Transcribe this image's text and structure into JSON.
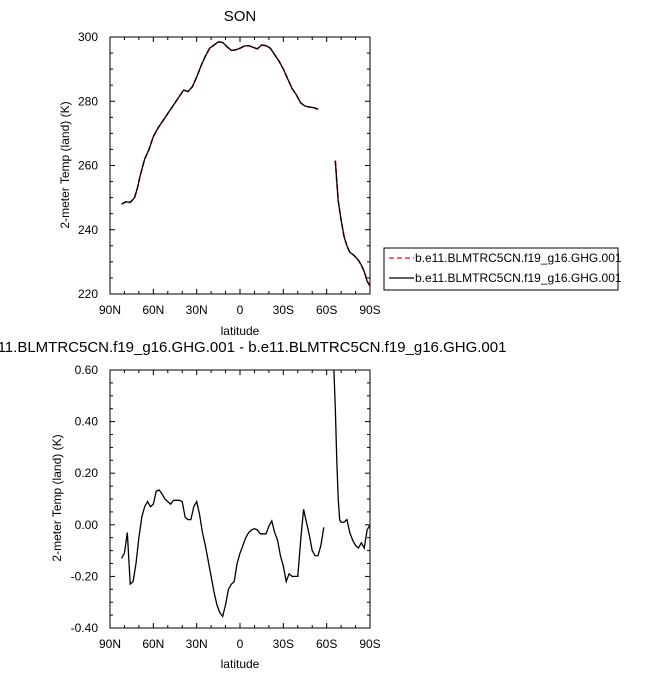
{
  "chart_data": [
    {
      "type": "line",
      "title": "SON",
      "xlabel": "latitude",
      "ylabel": "2-meter Temp (land) (K)",
      "xlim": [
        90,
        -90
      ],
      "ylim": [
        220,
        300
      ],
      "xticks": [
        90,
        60,
        30,
        0,
        -30,
        -60,
        -90
      ],
      "xtick_labels": [
        "90N",
        "60N",
        "30N",
        "0",
        "30S",
        "60S",
        "90S"
      ],
      "yticks": [
        220,
        240,
        260,
        280,
        300
      ],
      "ytick_labels": [
        "220",
        "240",
        "260",
        "280",
        "300"
      ],
      "legend": {
        "placement": "right",
        "entries": [
          "b.e11.BLMTRC5CN.f19_g16.GHG.001",
          "b.e11.BLMTRC5CN.f19_g16.GHG.001"
        ]
      },
      "series": [
        {
          "name": "b.e11.BLMTRC5CN.f19_g16.GHG.001",
          "color": "#ff0000",
          "style": "dashed",
          "segments": [
            [
              [
                82,
                248
              ],
              [
                79,
                248.7
              ],
              [
                76,
                248.5
              ],
              [
                73,
                250
              ],
              [
                71,
                253
              ],
              [
                69,
                257
              ],
              [
                66,
                262
              ],
              [
                63,
                265
              ],
              [
                60,
                269
              ],
              [
                57,
                271.5
              ],
              [
                54,
                273.5
              ],
              [
                51,
                275.5
              ],
              [
                48,
                277.5
              ],
              [
                45,
                279.5
              ],
              [
                42,
                281.5
              ],
              [
                39,
                283.5
              ],
              [
                36,
                283
              ],
              [
                33,
                284.5
              ],
              [
                30,
                287.5
              ],
              [
                27,
                291
              ],
              [
                24,
                294
              ],
              [
                21,
                296.5
              ],
              [
                18,
                297.5
              ],
              [
                15,
                298.5
              ],
              [
                12,
                298.3
              ],
              [
                9,
                297
              ],
              [
                6,
                295.8
              ],
              [
                3,
                296
              ],
              [
                0,
                296.5
              ],
              [
                -3,
                297.2
              ],
              [
                -6,
                297.3
              ],
              [
                -9,
                296.8
              ],
              [
                -12,
                296.3
              ],
              [
                -15,
                297.5
              ],
              [
                -18,
                297.3
              ],
              [
                -21,
                296.5
              ],
              [
                -24,
                294.5
              ],
              [
                -27,
                292.5
              ],
              [
                -30,
                290
              ],
              [
                -33,
                287
              ],
              [
                -36,
                284
              ],
              [
                -39,
                282
              ],
              [
                -42,
                279.5
              ],
              [
                -45,
                278.5
              ],
              [
                -48,
                278.2
              ],
              [
                -51,
                278
              ],
              [
                -54,
                277.5
              ]
            ],
            [
              [
                -66,
                261.5
              ],
              [
                -67,
                255
              ],
              [
                -68,
                249
              ],
              [
                -70,
                243
              ],
              [
                -72,
                238
              ],
              [
                -74,
                235
              ],
              [
                -76,
                233
              ],
              [
                -79,
                232
              ],
              [
                -82,
                230.5
              ],
              [
                -84,
                229
              ],
              [
                -86,
                227
              ],
              [
                -88,
                224
              ],
              [
                -90,
                222.5
              ]
            ]
          ]
        },
        {
          "name": "b.e11.BLMTRC5CN.f19_g16.GHG.001",
          "color": "#000000",
          "style": "solid",
          "segments": [
            [
              [
                82,
                248
              ],
              [
                79,
                248.7
              ],
              [
                76,
                248.5
              ],
              [
                73,
                250
              ],
              [
                71,
                253
              ],
              [
                69,
                257
              ],
              [
                66,
                262
              ],
              [
                63,
                265
              ],
              [
                60,
                269
              ],
              [
                57,
                271.5
              ],
              [
                54,
                273.5
              ],
              [
                51,
                275.5
              ],
              [
                48,
                277.5
              ],
              [
                45,
                279.5
              ],
              [
                42,
                281.5
              ],
              [
                39,
                283.5
              ],
              [
                36,
                283
              ],
              [
                33,
                284.5
              ],
              [
                30,
                287.5
              ],
              [
                27,
                291
              ],
              [
                24,
                294
              ],
              [
                21,
                296.5
              ],
              [
                18,
                297.5
              ],
              [
                15,
                298.5
              ],
              [
                12,
                298.3
              ],
              [
                9,
                297
              ],
              [
                6,
                295.8
              ],
              [
                3,
                296
              ],
              [
                0,
                296.5
              ],
              [
                -3,
                297.2
              ],
              [
                -6,
                297.3
              ],
              [
                -9,
                296.8
              ],
              [
                -12,
                296.3
              ],
              [
                -15,
                297.5
              ],
              [
                -18,
                297.3
              ],
              [
                -21,
                296.5
              ],
              [
                -24,
                294.5
              ],
              [
                -27,
                292.5
              ],
              [
                -30,
                290
              ],
              [
                -33,
                287
              ],
              [
                -36,
                284
              ],
              [
                -39,
                282
              ],
              [
                -42,
                279.5
              ],
              [
                -45,
                278.5
              ],
              [
                -48,
                278.2
              ],
              [
                -51,
                278
              ],
              [
                -54,
                277.5
              ]
            ],
            [
              [
                -66,
                261.5
              ],
              [
                -67,
                255
              ],
              [
                -68,
                249
              ],
              [
                -70,
                243
              ],
              [
                -72,
                238
              ],
              [
                -74,
                235
              ],
              [
                -76,
                233
              ],
              [
                -79,
                232
              ],
              [
                -82,
                230.5
              ],
              [
                -84,
                229
              ],
              [
                -86,
                227
              ],
              [
                -88,
                224
              ],
              [
                -90,
                222.5
              ]
            ]
          ]
        }
      ]
    },
    {
      "type": "line",
      "title": "11.BLMTRC5CN.f19_g16.GHG.001 - b.e11.BLMTRC5CN.f19_g16.GHG.001",
      "xlabel": "latitude",
      "ylabel": "2-meter Temp (land) (K)",
      "xlim": [
        90,
        -90
      ],
      "ylim": [
        -0.4,
        0.6
      ],
      "xticks": [
        90,
        60,
        30,
        0,
        -30,
        -60,
        -90
      ],
      "xtick_labels": [
        "90N",
        "60N",
        "30N",
        "0",
        "30S",
        "60S",
        "90S"
      ],
      "yticks": [
        -0.4,
        -0.2,
        0,
        0.2,
        0.4,
        0.6
      ],
      "ytick_labels": [
        "-0.40",
        "-0.20",
        "0.00",
        "0.20",
        "0.40",
        "0.60"
      ],
      "series": [
        {
          "color": "#000000",
          "style": "solid",
          "segments": [
            [
              [
                82,
                -0.13
              ],
              [
                80,
                -0.11
              ],
              [
                78,
                -0.03
              ],
              [
                76,
                -0.23
              ],
              [
                74,
                -0.22
              ],
              [
                72,
                -0.15
              ],
              [
                70,
                -0.05
              ],
              [
                68,
                0.03
              ],
              [
                66,
                0.07
              ],
              [
                64,
                0.09
              ],
              [
                62,
                0.07
              ],
              [
                60,
                0.08
              ],
              [
                58,
                0.13
              ],
              [
                56,
                0.135
              ],
              [
                54,
                0.12
              ],
              [
                52,
                0.1
              ],
              [
                50,
                0.09
              ],
              [
                48,
                0.08
              ],
              [
                46,
                0.095
              ],
              [
                44,
                0.095
              ],
              [
                42,
                0.095
              ],
              [
                40,
                0.09
              ],
              [
                38,
                0.03
              ],
              [
                36,
                0.02
              ],
              [
                34,
                0.02
              ],
              [
                32,
                0.07
              ],
              [
                30,
                0.09
              ],
              [
                28,
                0.04
              ],
              [
                26,
                -0.03
              ],
              [
                24,
                -0.08
              ],
              [
                22,
                -0.14
              ],
              [
                20,
                -0.2
              ],
              [
                18,
                -0.26
              ],
              [
                16,
                -0.31
              ],
              [
                14,
                -0.34
              ],
              [
                12,
                -0.355
              ],
              [
                10,
                -0.31
              ],
              [
                8,
                -0.25
              ],
              [
                6,
                -0.23
              ],
              [
                4,
                -0.22
              ],
              [
                2,
                -0.15
              ],
              [
                0,
                -0.11
              ],
              [
                -2,
                -0.08
              ],
              [
                -4,
                -0.05
              ],
              [
                -6,
                -0.03
              ],
              [
                -8,
                -0.02
              ],
              [
                -10,
                -0.015
              ],
              [
                -12,
                -0.02
              ],
              [
                -14,
                -0.035
              ],
              [
                -16,
                -0.035
              ],
              [
                -18,
                -0.035
              ],
              [
                -20,
                -0.005
              ],
              [
                -22,
                0.015
              ],
              [
                -24,
                -0.03
              ],
              [
                -26,
                -0.06
              ],
              [
                -28,
                -0.12
              ],
              [
                -30,
                -0.16
              ],
              [
                -32,
                -0.22
              ],
              [
                -34,
                -0.19
              ],
              [
                -36,
                -0.2
              ],
              [
                -38,
                -0.2
              ],
              [
                -40,
                -0.2
              ],
              [
                -42,
                -0.06
              ],
              [
                -44,
                0.06
              ],
              [
                -46,
                0.01
              ],
              [
                -48,
                -0.04
              ],
              [
                -50,
                -0.1
              ],
              [
                -52,
                -0.12
              ],
              [
                -54,
                -0.12
              ],
              [
                -56,
                -0.08
              ],
              [
                -58,
                -0.01
              ]
            ],
            [
              [
                -65,
                0.6
              ],
              [
                -66,
                0.45
              ],
              [
                -67,
                0.25
              ],
              [
                -68,
                0.1
              ],
              [
                -69,
                0.02
              ],
              [
                -70,
                0.01
              ],
              [
                -72,
                0.01
              ],
              [
                -74,
                0.02
              ],
              [
                -76,
                -0.03
              ],
              [
                -78,
                -0.06
              ],
              [
                -80,
                -0.08
              ],
              [
                -82,
                -0.09
              ],
              [
                -84,
                -0.07
              ],
              [
                -86,
                -0.09
              ],
              [
                -88,
                -0.02
              ],
              [
                -90,
                0
              ]
            ]
          ]
        }
      ]
    }
  ]
}
